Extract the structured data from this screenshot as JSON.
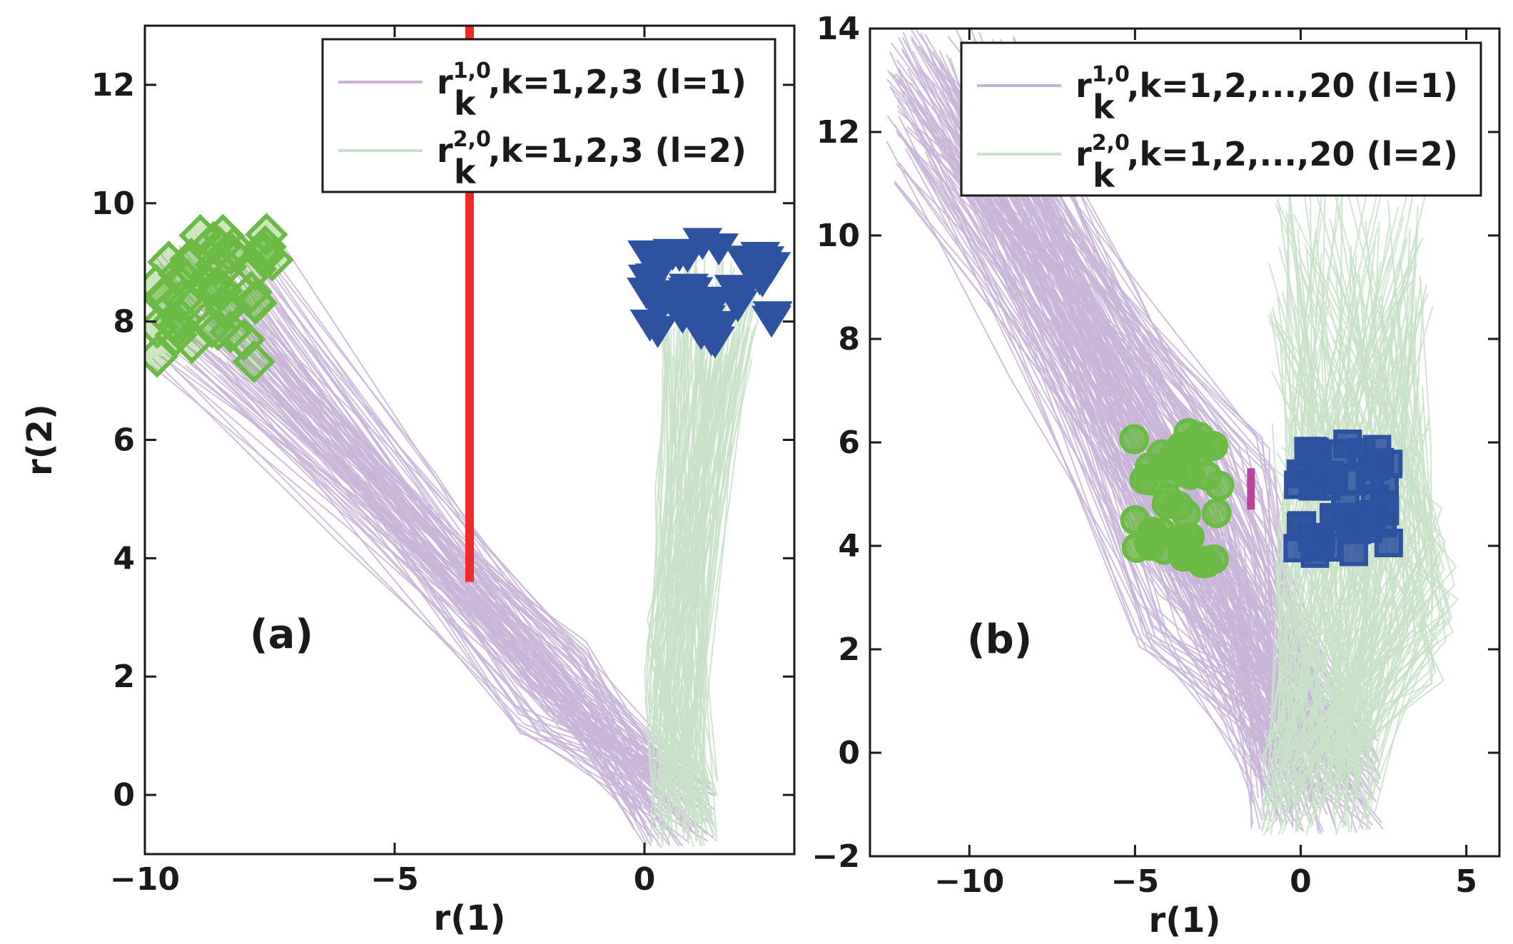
{
  "chart_data": [
    {
      "type": "line",
      "panel_label": "(a)",
      "xlabel": "r(1)",
      "ylabel": "r(2)",
      "xlim": [
        -10,
        3
      ],
      "ylim": [
        -1,
        13
      ],
      "xticks": [
        -10,
        -5,
        0
      ],
      "yticks": [
        0,
        2,
        4,
        6,
        8,
        10,
        12
      ],
      "xtick_labels": [
        "−10",
        "−5",
        "0"
      ],
      "ytick_labels": [
        "0",
        "2",
        "4",
        "6",
        "8",
        "10",
        "12"
      ],
      "legend": {
        "placement": "top-right",
        "entries": [
          {
            "base": "r",
            "sub": "k",
            "sup": "1,0",
            "rest": ",k=1,2,3 (l=1)",
            "color": "#c8b4d8"
          },
          {
            "base": "r",
            "sub": "k",
            "sup": "2,0",
            "rest": ",k=1,2,3 (l=2)",
            "color": "#c8e2c8"
          }
        ]
      },
      "series": [
        {
          "name": "l=1 trajectories",
          "color": "#c8b4d8",
          "start": [
            -8.6,
            8.3
          ],
          "spread_start": [
            2.6,
            2.4
          ],
          "knee": [
            -1.8,
            1.8
          ],
          "spread_knee": [
            1.6,
            1.6
          ],
          "end": [
            0.6,
            -0.2
          ],
          "spread_end": [
            1.7,
            1.4
          ]
        },
        {
          "name": "l=2 trajectories",
          "color": "#c8e2c8",
          "start": [
            1.3,
            8.3
          ],
          "spread_start": [
            2.0,
            2.2
          ],
          "knee": [
            0.6,
            2.0
          ],
          "spread_knee": [
            1.2,
            2.0
          ],
          "end": [
            0.8,
            -0.3
          ],
          "spread_end": [
            1.4,
            1.2
          ]
        }
      ],
      "markers": [
        {
          "name": "l=1 points",
          "shape": "diamond",
          "color": "#6aba45",
          "center": [
            -8.6,
            8.4
          ],
          "spread": [
            2.4,
            2.4
          ]
        },
        {
          "name": "l=2 points",
          "shape": "triangle-down",
          "color": "#2c52a0",
          "center": [
            1.3,
            8.5
          ],
          "spread": [
            2.6,
            1.7
          ]
        }
      ],
      "separator": {
        "color": "#ee2a2a",
        "x": -3.5,
        "y": [
          3.6,
          13
        ]
      }
    },
    {
      "type": "line",
      "panel_label": "(b)",
      "xlabel": "r(1)",
      "ylabel": "",
      "xlim": [
        -13,
        6
      ],
      "ylim": [
        -2,
        14
      ],
      "xticks": [
        -10,
        -5,
        0,
        5
      ],
      "yticks": [
        -2,
        0,
        2,
        4,
        6,
        8,
        10,
        12,
        14
      ],
      "xtick_labels": [
        "−10",
        "−5",
        "0",
        "5"
      ],
      "ytick_labels": [
        "−2",
        "0",
        "2",
        "4",
        "6",
        "8",
        "10",
        "12",
        "14"
      ],
      "legend": {
        "placement": "top-right",
        "entries": [
          {
            "base": "r",
            "sub": "k",
            "sup": "1,0",
            "rest": ",k=1,2,...,20 (l=1)",
            "color": "#c8b4d8"
          },
          {
            "base": "r",
            "sub": "k",
            "sup": "2,0",
            "rest": ",k=1,2,...,20 (l=2)",
            "color": "#c8e2c8"
          }
        ]
      },
      "series": [
        {
          "name": "l=1 trajectories",
          "color": "#c8b4d8",
          "start": [
            -10.5,
            12.5
          ],
          "spread_start": [
            4.0,
            3.0
          ],
          "knee": [
            -3.0,
            4.0
          ],
          "spread_knee": [
            4.5,
            4.5
          ],
          "end": [
            0.5,
            -0.5
          ],
          "spread_end": [
            4.0,
            2.2
          ]
        },
        {
          "name": "l=2 trajectories",
          "color": "#c8e2c8",
          "start": [
            1.5,
            8.5
          ],
          "spread_start": [
            5.0,
            6.0
          ],
          "knee": [
            2.0,
            3.0
          ],
          "spread_knee": [
            5.5,
            3.5
          ],
          "end": [
            0.5,
            -0.5
          ],
          "spread_end": [
            3.5,
            2.2
          ]
        }
      ],
      "markers": [
        {
          "name": "l=1 points",
          "shape": "circle",
          "color": "#6aba45",
          "center": [
            -3.7,
            4.9
          ],
          "spread": [
            2.7,
            2.6
          ]
        },
        {
          "name": "l=2 points",
          "shape": "square",
          "color": "#2c52a0",
          "center": [
            1.3,
            4.9
          ],
          "spread": [
            2.8,
            2.2
          ]
        }
      ],
      "separator": {
        "color": "#b8449c",
        "x": -1.5,
        "y": [
          4.7,
          5.5
        ]
      }
    }
  ]
}
